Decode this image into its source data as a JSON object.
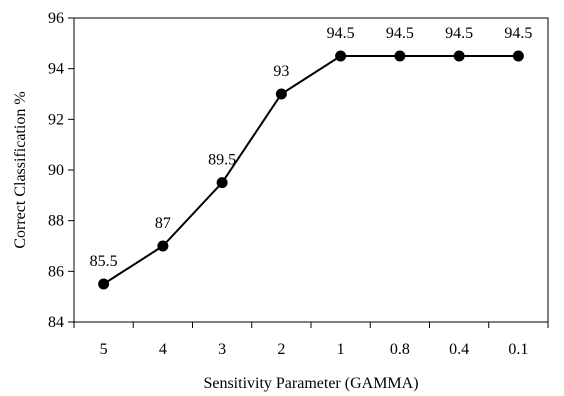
{
  "chart_data": {
    "type": "line",
    "title": "",
    "xlabel": "Sensitivity Parameter (GAMMA)",
    "ylabel": "Correct Classification %",
    "categories": [
      "5",
      "4",
      "3",
      "2",
      "1",
      "0.8",
      "0.4",
      "0.1"
    ],
    "series": [
      {
        "values": [
          85.5,
          87,
          89.5,
          93,
          94.5,
          94.5,
          94.5,
          94.5
        ],
        "data_labels": [
          "85.5",
          "87",
          "89.5",
          "93",
          "94.5",
          "94.5",
          "94.5",
          "94.5"
        ]
      }
    ],
    "ylim": [
      84,
      96
    ],
    "yticks": [
      84,
      86,
      88,
      90,
      92,
      94,
      96
    ],
    "grid": false,
    "legend": "none",
    "colors": {
      "line": "#000000",
      "marker": "#000000",
      "axis": "#000000"
    }
  }
}
